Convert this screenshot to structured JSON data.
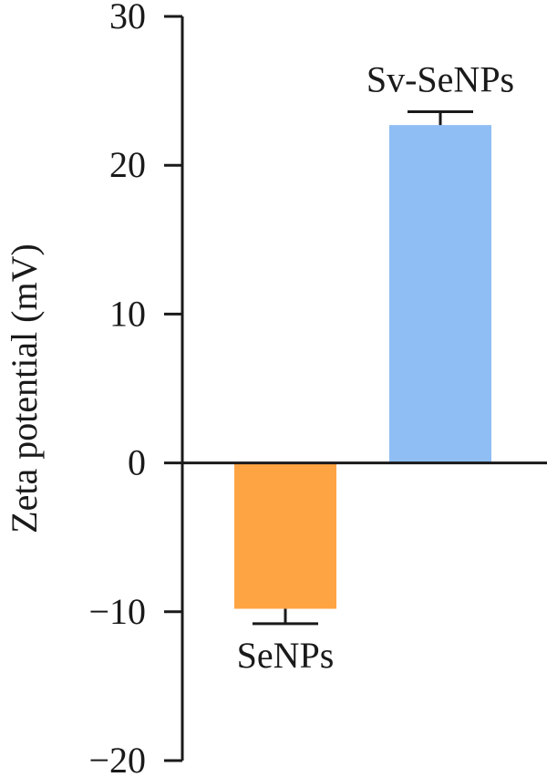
{
  "chart_data": {
    "type": "bar",
    "ylabel": "Zeta potential (mV)",
    "ylim": [
      -20,
      30
    ],
    "yticks": [
      30,
      20,
      10,
      0,
      -10,
      -20
    ],
    "ytick_labels": [
      "30",
      "20",
      "10",
      "0",
      "−10",
      "−20"
    ],
    "categories": [
      "SeNPs",
      "Sv-SeNPs"
    ],
    "values": [
      -9.8,
      22.7
    ],
    "errors": [
      1.0,
      0.9
    ],
    "colors": [
      "#FFA443",
      "#8FBEF5"
    ]
  }
}
